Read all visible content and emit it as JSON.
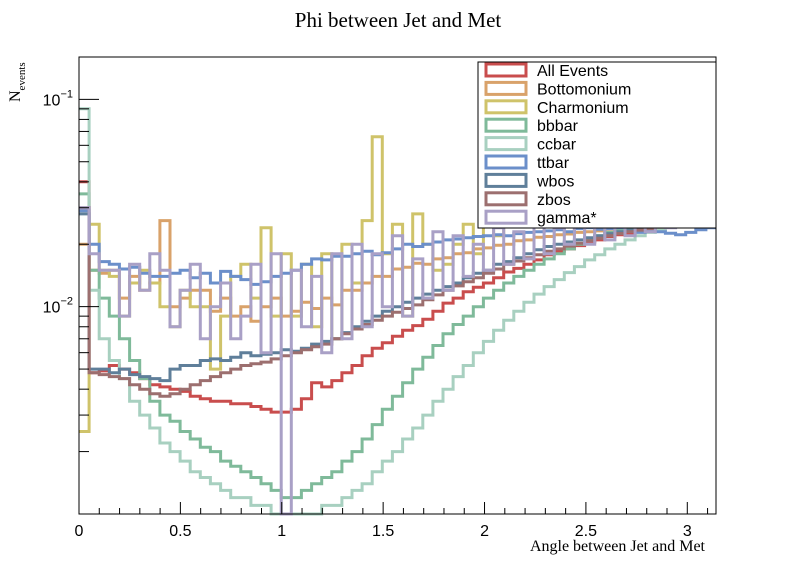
{
  "chart_data": {
    "type": "line",
    "title": "Phi between Jet and Met",
    "xlabel": "Angle between Jet and Met",
    "ylabel_main": "N",
    "ylabel_sub": "events",
    "xlim": [
      0,
      3.1416
    ],
    "ylim": [
      0.001,
      0.16
    ],
    "y_scale": "log",
    "grid": false,
    "legend_position": "top-right",
    "x_ticks": [
      {
        "v": 0,
        "label": "0"
      },
      {
        "v": 0.5,
        "label": "0.5"
      },
      {
        "v": 1,
        "label": "1"
      },
      {
        "v": 1.5,
        "label": "1.5"
      },
      {
        "v": 2,
        "label": "2"
      },
      {
        "v": 2.5,
        "label": "2.5"
      },
      {
        "v": 3,
        "label": "3"
      }
    ],
    "y_ticks": [
      {
        "v": 0.1,
        "base": "10",
        "exp": "−1"
      },
      {
        "v": 0.01,
        "base": "10",
        "exp": "−2"
      }
    ],
    "bins": 63,
    "series": [
      {
        "name": "All Events",
        "color": "#c94d4d",
        "values": [
          0.04,
          0.0048,
          0.0049,
          0.0052,
          0.005,
          0.0048,
          0.0045,
          0.0042,
          0.0041,
          0.004,
          0.0039,
          0.0037,
          0.0036,
          0.0035,
          0.0035,
          0.0034,
          0.0034,
          0.0033,
          0.0032,
          0.0031,
          0.0031,
          0.0032,
          0.0036,
          0.0043,
          0.0041,
          0.0044,
          0.0048,
          0.0052,
          0.0058,
          0.0063,
          0.0067,
          0.0072,
          0.0077,
          0.0081,
          0.0087,
          0.0095,
          0.0104,
          0.011,
          0.0118,
          0.0124,
          0.013,
          0.0138,
          0.0147,
          0.0153,
          0.016,
          0.0168,
          0.0178,
          0.0185,
          0.019,
          0.0197,
          0.0205,
          0.021,
          0.0218,
          0.0222,
          0.0226,
          0.023,
          0.0235,
          0.024,
          0.0244,
          0.0248,
          0.0252,
          0.0255,
          0.0258
        ]
      },
      {
        "name": "Bottomonium",
        "color": "#d9a26a",
        "values": [
          0.02,
          0.015,
          0.0145,
          0.015,
          0.011,
          0.014,
          0.012,
          0.013,
          0.026,
          0.01,
          0.011,
          0.012,
          0.012,
          0.0095,
          0.011,
          0.009,
          0.01,
          0.0085,
          0.01,
          0.011,
          0.009,
          0.0095,
          0.0105,
          0.0098,
          0.011,
          0.0102,
          0.012,
          0.012,
          0.013,
          0.014,
          0.014,
          0.0152,
          0.0155,
          0.0162,
          0.016,
          0.017,
          0.0172,
          0.018,
          0.0182,
          0.019,
          0.0192,
          0.0198,
          0.02,
          0.0208,
          0.021,
          0.0216,
          0.0218,
          0.0222,
          0.0224,
          0.0228,
          0.023,
          0.0232,
          0.0236,
          0.0238,
          0.024,
          0.0242,
          0.0245,
          0.0248,
          0.025,
          0.0252,
          0.0254,
          0.0256,
          0.0258
        ]
      },
      {
        "name": "Charmonium",
        "color": "#cfc36a",
        "values": [
          0.0025,
          0.025,
          0.015,
          0.014,
          0.009,
          0.013,
          0.015,
          0.013,
          0.01,
          0.008,
          0.012,
          0.01,
          0.01,
          0.005,
          0.009,
          0.014,
          0.016,
          0.011,
          0.024,
          0.009,
          0.018,
          0.009,
          0.016,
          0.008,
          0.018,
          0.007,
          0.02,
          0.013,
          0.026,
          0.066,
          0.018,
          0.025,
          0.009,
          0.028,
          0.02,
          0.015,
          0.016,
          0.02,
          0.025,
          0.018,
          0.026,
          0.022,
          0.03,
          0.028,
          0.034,
          0.033,
          0.038,
          0.035,
          0.039,
          0.036,
          0.03,
          0.04,
          0.038,
          0.033,
          0.031,
          0.035,
          0.033,
          0.036,
          0.034,
          0.032,
          0.034,
          0.035,
          0.038
        ]
      },
      {
        "name": "bbbar",
        "color": "#7fba9a",
        "values": [
          0.035,
          0.015,
          0.011,
          0.009,
          0.007,
          0.0055,
          0.0045,
          0.0035,
          0.003,
          0.0028,
          0.0025,
          0.0023,
          0.0021,
          0.002,
          0.0018,
          0.0017,
          0.0016,
          0.0015,
          0.0014,
          0.0013,
          0.0012,
          0.0012,
          0.0013,
          0.0014,
          0.0015,
          0.0016,
          0.0018,
          0.002,
          0.0023,
          0.0027,
          0.0032,
          0.0037,
          0.0043,
          0.005,
          0.0057,
          0.0065,
          0.0074,
          0.0082,
          0.009,
          0.01,
          0.011,
          0.012,
          0.013,
          0.014,
          0.015,
          0.016,
          0.017,
          0.018,
          0.019,
          0.02,
          0.021,
          0.022,
          0.0228,
          0.0234,
          0.024,
          0.0245,
          0.025,
          0.0254,
          0.0258,
          0.0262,
          0.0265,
          0.0268,
          0.027
        ]
      },
      {
        "name": "ccbar",
        "color": "#a8d0c0",
        "values": [
          0.09,
          0.012,
          0.007,
          0.0055,
          0.0045,
          0.0035,
          0.003,
          0.0026,
          0.0022,
          0.002,
          0.0018,
          0.0016,
          0.0015,
          0.0014,
          0.0013,
          0.0012,
          0.0012,
          0.0011,
          0.0011,
          0.001,
          0.001,
          0.001,
          0.001,
          0.001,
          0.0011,
          0.0011,
          0.0012,
          0.0013,
          0.0014,
          0.0016,
          0.0018,
          0.002,
          0.0023,
          0.0026,
          0.003,
          0.0035,
          0.004,
          0.0046,
          0.0052,
          0.006,
          0.0068,
          0.0077,
          0.0086,
          0.0095,
          0.0105,
          0.0115,
          0.0125,
          0.0135,
          0.0146,
          0.0156,
          0.0168,
          0.0178,
          0.019,
          0.02,
          0.021,
          0.022,
          0.0228,
          0.0236,
          0.0244,
          0.025,
          0.0256,
          0.0262,
          0.0268
        ]
      },
      {
        "name": "ttbar",
        "color": "#6b8fca",
        "values": [
          0.029,
          0.02,
          0.0165,
          0.016,
          0.0152,
          0.0155,
          0.0145,
          0.014,
          0.014,
          0.0145,
          0.015,
          0.0138,
          0.0145,
          0.013,
          0.0148,
          0.014,
          0.0135,
          0.0128,
          0.0132,
          0.014,
          0.0145,
          0.015,
          0.016,
          0.017,
          0.0168,
          0.0175,
          0.0175,
          0.018,
          0.0185,
          0.0178,
          0.0182,
          0.019,
          0.02,
          0.0195,
          0.02,
          0.0205,
          0.021,
          0.0212,
          0.0215,
          0.0218,
          0.022,
          0.0222,
          0.022,
          0.0225,
          0.0228,
          0.023,
          0.0232,
          0.0235,
          0.023,
          0.0238,
          0.024,
          0.0236,
          0.0238,
          0.024,
          0.0232,
          0.0228,
          0.0235,
          0.023,
          0.0226,
          0.0222,
          0.0228,
          0.0235,
          0.024
        ]
      },
      {
        "name": "wbos",
        "color": "#5f7f9a",
        "values": [
          0.028,
          0.005,
          0.005,
          0.0048,
          0.005,
          0.0047,
          0.0046,
          0.0045,
          0.0044,
          0.005,
          0.0052,
          0.0052,
          0.0055,
          0.0056,
          0.0055,
          0.0057,
          0.006,
          0.0058,
          0.0059,
          0.006,
          0.0062,
          0.0061,
          0.0063,
          0.0066,
          0.0068,
          0.007,
          0.0075,
          0.008,
          0.0085,
          0.009,
          0.0095,
          0.01,
          0.0105,
          0.011,
          0.0115,
          0.012,
          0.0125,
          0.013,
          0.0138,
          0.0145,
          0.015,
          0.016,
          0.0165,
          0.0172,
          0.018,
          0.0188,
          0.0195,
          0.02,
          0.0205,
          0.021,
          0.0215,
          0.022,
          0.0225,
          0.023,
          0.0234,
          0.0238,
          0.024,
          0.0244,
          0.0248,
          0.025,
          0.0252,
          0.0255,
          0.0258
        ]
      },
      {
        "name": "zbos",
        "color": "#9c6f6f",
        "values": [
          0.03,
          0.0048,
          0.0047,
          0.0046,
          0.0045,
          0.0042,
          0.004,
          0.0038,
          0.0037,
          0.0038,
          0.004,
          0.0042,
          0.0044,
          0.0046,
          0.0048,
          0.005,
          0.0052,
          0.0053,
          0.0054,
          0.0056,
          0.0058,
          0.006,
          0.0062,
          0.0064,
          0.0066,
          0.007,
          0.0074,
          0.0078,
          0.0082,
          0.0086,
          0.009,
          0.0094,
          0.0098,
          0.0102,
          0.0108,
          0.0114,
          0.012,
          0.0126,
          0.0132,
          0.0138,
          0.0145,
          0.0152,
          0.016,
          0.0166,
          0.0172,
          0.0178,
          0.0185,
          0.019,
          0.0196,
          0.0202,
          0.0208,
          0.0214,
          0.022,
          0.0225,
          0.023,
          0.0234,
          0.0238,
          0.0242,
          0.0246,
          0.025,
          0.0252,
          0.0255,
          0.0258
        ]
      },
      {
        "name": "gamma*",
        "color": "#a9a0c6",
        "values": [
          0.03,
          0.018,
          0.015,
          0.015,
          0.009,
          0.016,
          0.012,
          0.018,
          0.015,
          0.008,
          0.012,
          0.016,
          0.007,
          0.01,
          0.013,
          0.007,
          0.009,
          0.016,
          0.006,
          0.018,
          0.001,
          0.015,
          0.008,
          0.014,
          0.006,
          0.018,
          0.007,
          0.02,
          0.008,
          0.018,
          0.01,
          0.022,
          0.009,
          0.017,
          0.011,
          0.023,
          0.012,
          0.022,
          0.014,
          0.02,
          0.015,
          0.024,
          0.016,
          0.023,
          0.017,
          0.025,
          0.018,
          0.024,
          0.02,
          0.025,
          0.02,
          0.026,
          0.021,
          0.025,
          0.022,
          0.026,
          0.023,
          0.026,
          0.024,
          0.0265,
          0.0245,
          0.0262,
          0.025
        ]
      }
    ]
  }
}
